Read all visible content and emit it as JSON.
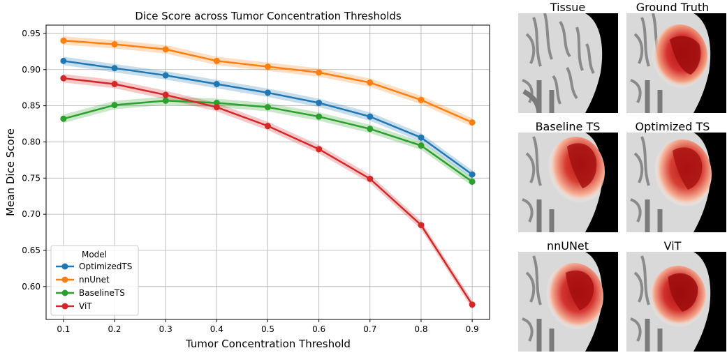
{
  "chart_data": {
    "type": "line",
    "title": "Dice Score across Tumor Concentration Thresholds",
    "xlabel": "Tumor Concentration Threshold",
    "ylabel": "Mean Dice Score",
    "x": [
      0.1,
      0.2,
      0.3,
      0.4,
      0.5,
      0.6,
      0.7,
      0.8,
      0.9
    ],
    "xticks": [
      "0.1",
      "0.2",
      "0.3",
      "0.4",
      "0.5",
      "0.6",
      "0.7",
      "0.8",
      "0.9"
    ],
    "yticks": [
      "0.60",
      "0.65",
      "0.70",
      "0.75",
      "0.80",
      "0.85",
      "0.90",
      "0.95"
    ],
    "xlim": [
      0.066,
      0.934
    ],
    "ylim": [
      0.5545,
      0.9615
    ],
    "grid": true,
    "legend_title": "Model",
    "legend_position": "lower-left",
    "series": [
      {
        "name": "OptimizedTS",
        "color": "#1f77b4",
        "values": [
          0.912,
          0.902,
          0.892,
          0.88,
          0.868,
          0.854,
          0.835,
          0.806,
          0.755
        ]
      },
      {
        "name": "nnUnet",
        "color": "#ff7f0e",
        "values": [
          0.94,
          0.935,
          0.928,
          0.912,
          0.904,
          0.896,
          0.882,
          0.858,
          0.827
        ]
      },
      {
        "name": "BaselineTS",
        "color": "#2ca02c",
        "values": [
          0.832,
          0.851,
          0.857,
          0.854,
          0.848,
          0.835,
          0.818,
          0.795,
          0.745
        ]
      },
      {
        "name": "ViT",
        "color": "#d62728",
        "values": [
          0.888,
          0.88,
          0.865,
          0.848,
          0.822,
          0.79,
          0.749,
          0.685,
          0.575
        ]
      }
    ]
  },
  "panels": [
    {
      "title": "Tissue"
    },
    {
      "title": "Ground Truth"
    },
    {
      "title": "Baseline TS"
    },
    {
      "title": "Optimized TS"
    },
    {
      "title": "nnUNet"
    },
    {
      "title": "ViT"
    }
  ]
}
